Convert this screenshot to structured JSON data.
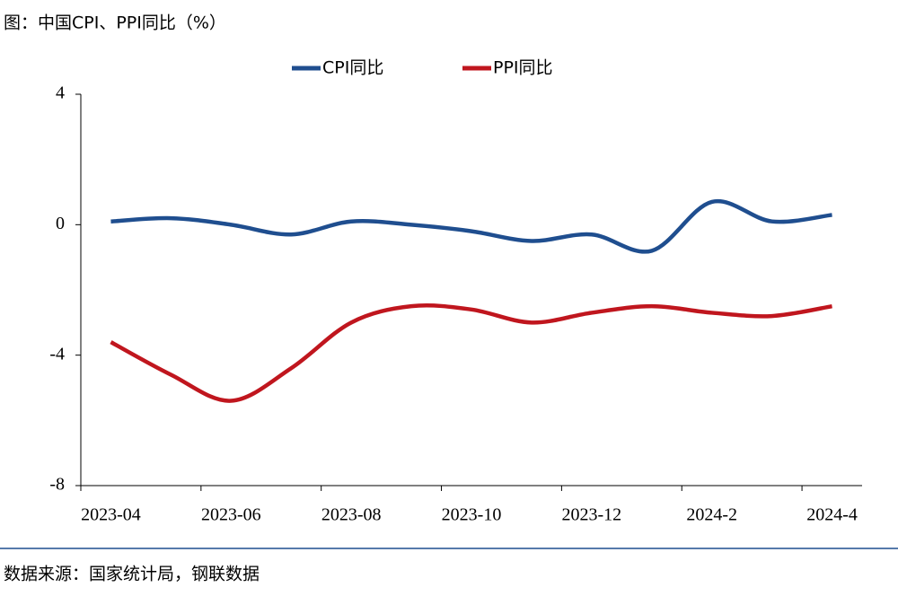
{
  "chart_data": {
    "type": "line",
    "title": "图：中国CPI、PPI同比（%）",
    "source": "数据来源：国家统计局，钢联数据",
    "categories": [
      "2023-04",
      null,
      "2023-06",
      null,
      "2023-08",
      null,
      "2023-10",
      null,
      "2023-12",
      null,
      "2024-2",
      null,
      "2024-4"
    ],
    "series": [
      {
        "name": "CPI同比",
        "color": "#1f4e8f",
        "values": [
          0.1,
          0.2,
          0.0,
          -0.3,
          0.1,
          0.0,
          -0.2,
          -0.5,
          -0.3,
          -0.8,
          0.7,
          0.1,
          0.3
        ]
      },
      {
        "name": "PPI同比",
        "color": "#c0161e",
        "values": [
          -3.6,
          -4.6,
          -5.4,
          -4.4,
          -3.0,
          -2.5,
          -2.6,
          -3.0,
          -2.7,
          -2.5,
          -2.7,
          -2.8,
          -2.5
        ]
      }
    ],
    "ylim": [
      -8,
      4
    ],
    "yticks": [
      4,
      0,
      -4,
      -8
    ],
    "legend": "top"
  }
}
